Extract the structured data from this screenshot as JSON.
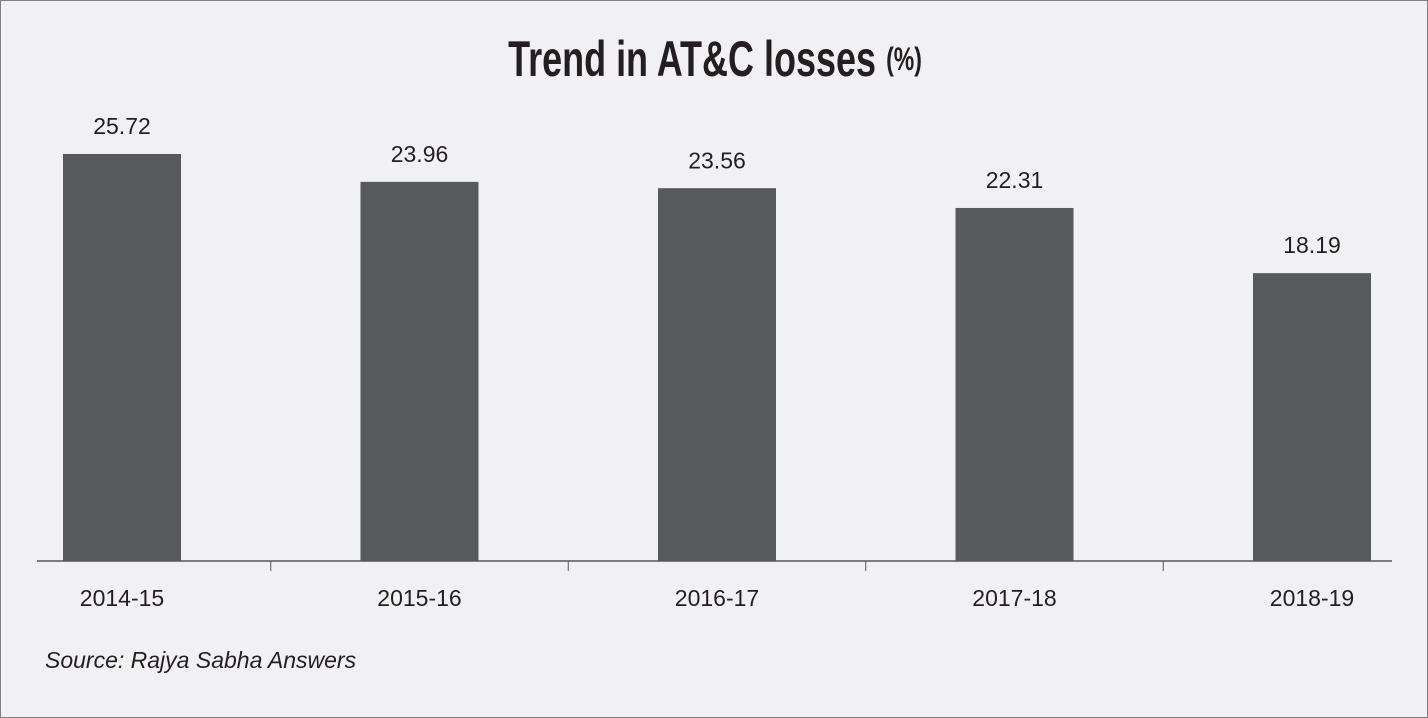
{
  "chart_data": {
    "type": "bar",
    "title": "Trend in AT&C losses",
    "title_unit": "(%)",
    "categories": [
      "2014-15",
      "2015-16",
      "2016-17",
      "2017-18",
      "2018-19"
    ],
    "values": [
      25.72,
      23.96,
      23.56,
      22.31,
      18.19
    ],
    "color": "#58595b",
    "source": "Source: Rajya Sabha Answers"
  }
}
